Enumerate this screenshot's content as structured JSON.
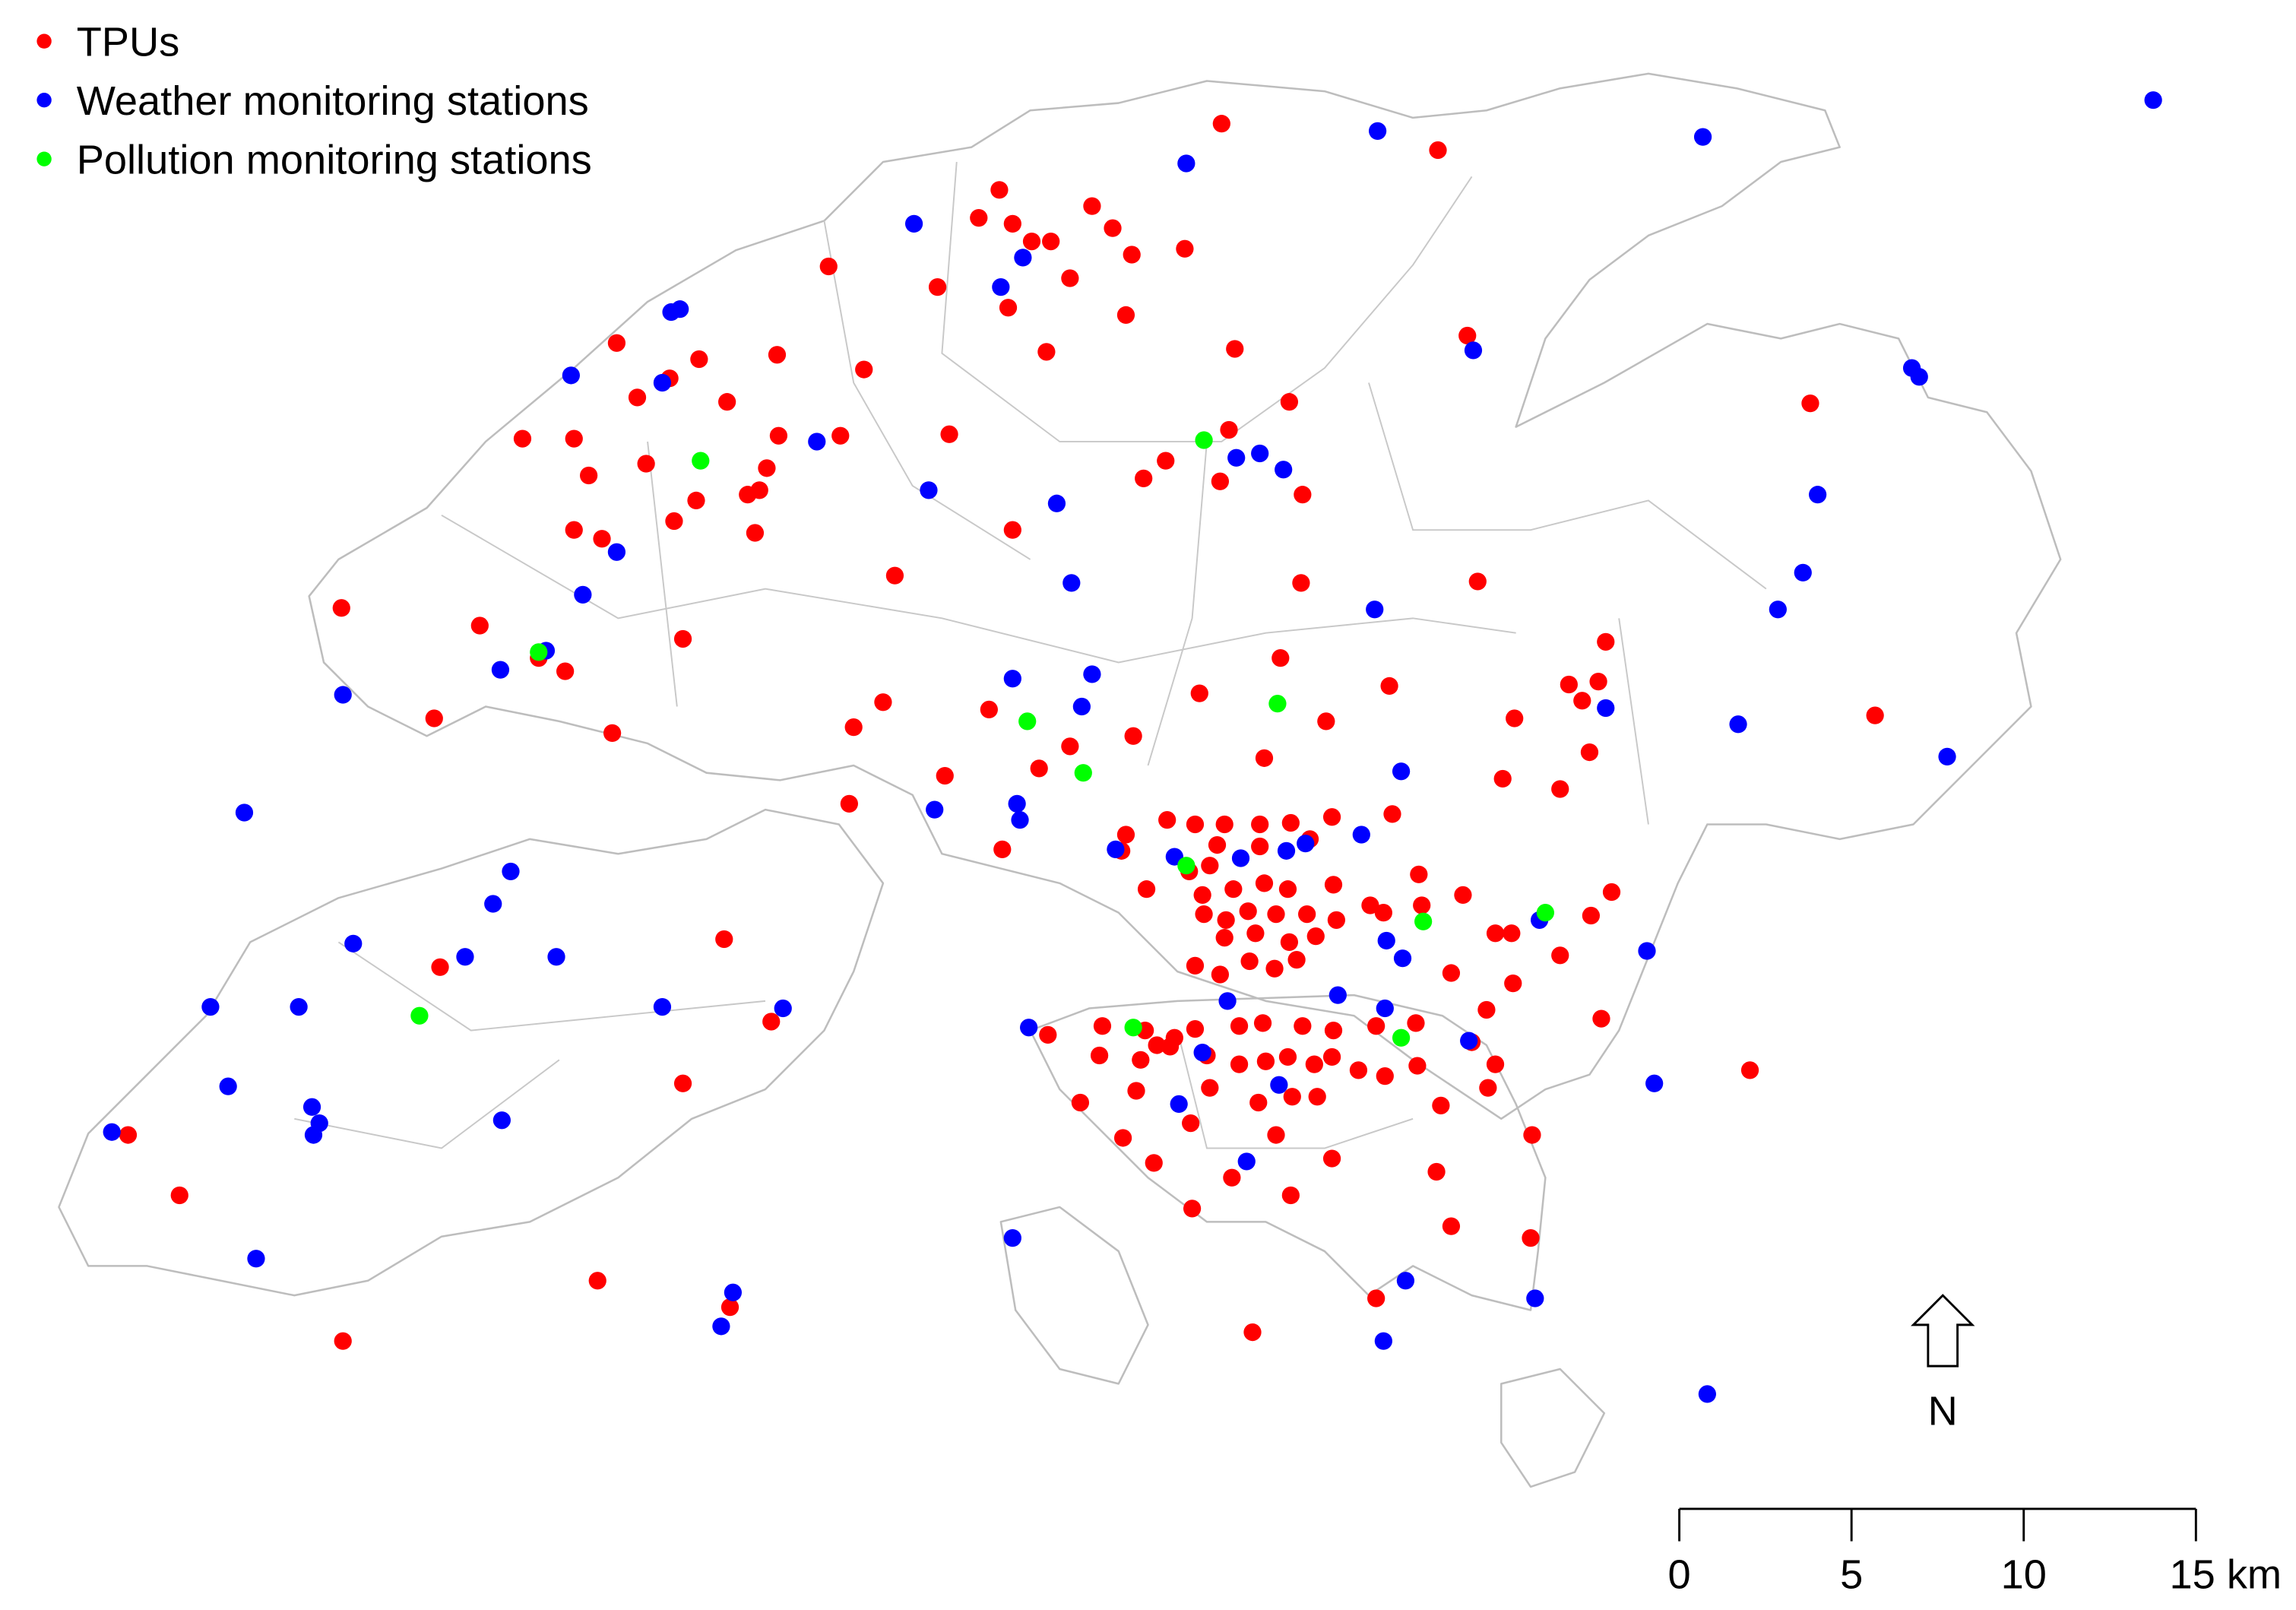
{
  "legend": {
    "items": [
      {
        "label": "TPUs",
        "color": "#ff0000"
      },
      {
        "label": "Weather monitoring stations",
        "color": "#0000ff"
      },
      {
        "label": "Pollution monitoring stations",
        "color": "#00ff00"
      }
    ]
  },
  "north_label": "N",
  "scale_bar": {
    "labels": [
      "0",
      "5",
      "10",
      "15 km"
    ]
  }
}
